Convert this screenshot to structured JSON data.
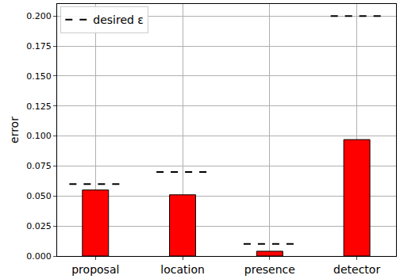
{
  "chart_data": {
    "type": "bar",
    "categories": [
      "proposal",
      "location",
      "presence",
      "detector"
    ],
    "values": [
      0.055,
      0.051,
      0.004,
      0.097
    ],
    "color": "#ff0000",
    "y_label": "error",
    "ylim": [
      0,
      0.21
    ],
    "yticks": [
      {
        "value": 0,
        "label": "0.000"
      },
      {
        "value": 0.025,
        "label": "0.025"
      },
      {
        "value": 0.05,
        "label": "0.050"
      },
      {
        "value": 0.075,
        "label": "0.075"
      },
      {
        "value": 0.1,
        "label": "0.100"
      },
      {
        "value": 0.125,
        "label": "0.125"
      },
      {
        "value": 0.15,
        "label": "0.150"
      },
      {
        "value": 0.175,
        "label": "0.175"
      },
      {
        "value": 0.2,
        "label": "0.200"
      }
    ],
    "grid": true,
    "legend": "upper left",
    "series": [
      {
        "name": "desired ε",
        "type": "line",
        "line_style": "dashed",
        "color": "#000000",
        "values": [
          0.06,
          0.07,
          0.01,
          0.2
        ]
      }
    ]
  }
}
